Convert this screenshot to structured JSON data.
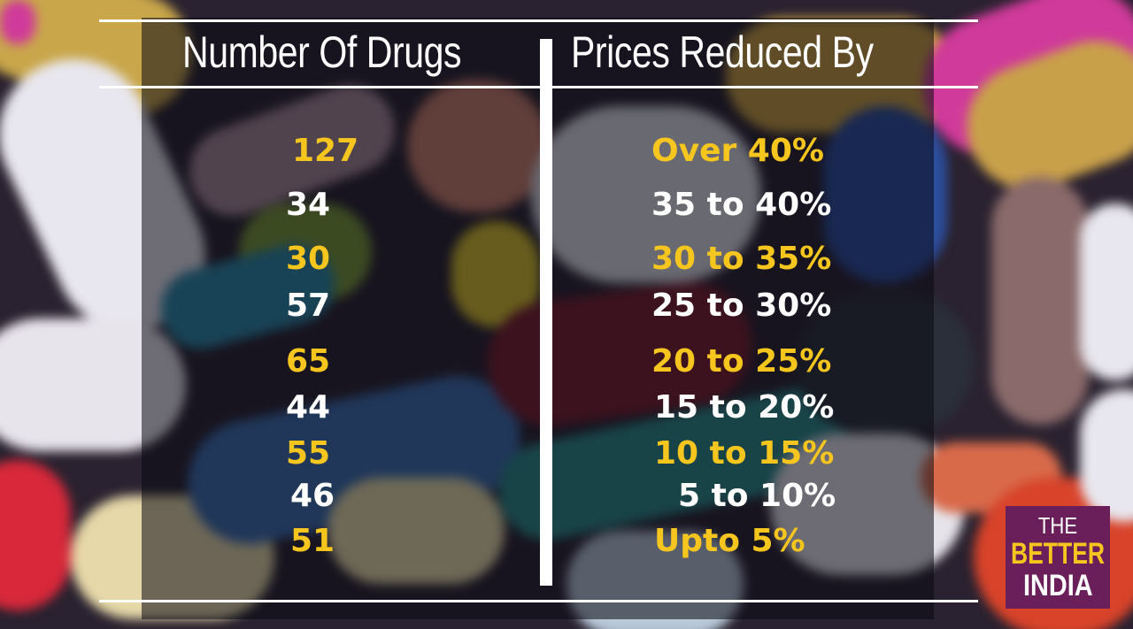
{
  "headers": {
    "left": "Number Of Drugs",
    "right": "Prices Reduced By"
  },
  "rows": [
    {
      "count": "127",
      "reduction": "Over 40%",
      "color": "#f7c61e"
    },
    {
      "count": "34",
      "reduction": "35 to 40%",
      "color": "#ffffff"
    },
    {
      "count": "30",
      "reduction": "30 to 35%",
      "color": "#f7c61e"
    },
    {
      "count": "57",
      "reduction": "25 to 30%",
      "color": "#ffffff"
    },
    {
      "count": "65",
      "reduction": "20 to 25%",
      "color": "#f7c61e"
    },
    {
      "count": "44",
      "reduction": "15 to 20%",
      "color": "#ffffff"
    },
    {
      "count": "55",
      "reduction": "10 to 15%",
      "color": "#f7c61e"
    },
    {
      "count": "46",
      "reduction": "5 to 10%",
      "color": "#ffffff"
    },
    {
      "count": "51",
      "reduction": "Upto 5%",
      "color": "#f7c61e"
    }
  ],
  "logo": {
    "line1": "THE",
    "line2": "BETTER",
    "line3": "INDIA"
  },
  "colors": {
    "accent": "#f7c61e",
    "text": "#ffffff",
    "logo_bg": "#6a1f5a"
  }
}
